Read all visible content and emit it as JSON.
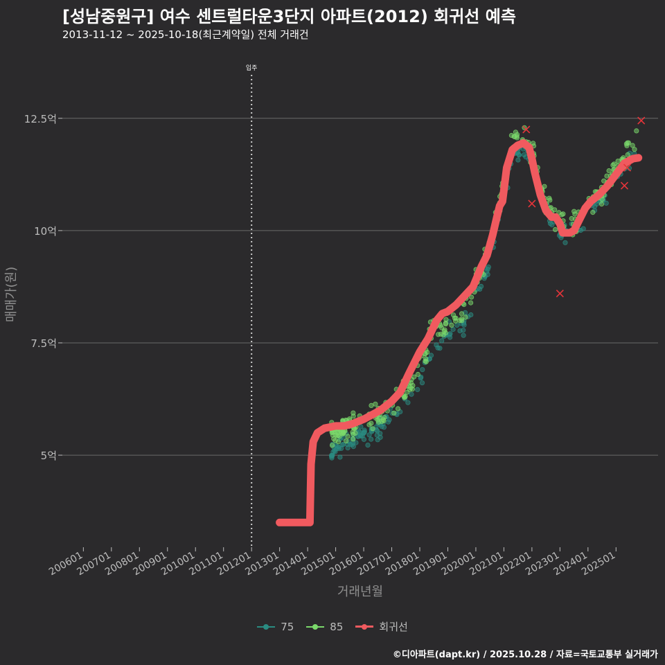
{
  "title": "[성남중원구] 여수 센트럴타운3단지 아파트(2012) 회귀선 예측",
  "subtitle": "2013-11-12 ~ 2025-10-18(최근계약일) 전체 거래건",
  "caption": "©디아파트(dapt.kr) / 2025.10.28 / 자료=국토교통부 실거래가",
  "colors": {
    "background": "#2b2a2c",
    "s75": "#2a8c82",
    "s85": "#7bd96b",
    "regression": "#f05a5f",
    "grid": "#6a6a6a",
    "text": "#ffffff",
    "axis_text": "#bdbdbd"
  },
  "chart_data": {
    "type": "scatter",
    "xlabel": "거래년월",
    "ylabel": "매매가(원)",
    "x_tick_labels": [
      "200601",
      "200701",
      "200801",
      "200901",
      "201001",
      "201101",
      "201201",
      "201301",
      "201401",
      "201501",
      "201601",
      "201701",
      "201801",
      "201901",
      "202001",
      "202101",
      "202201",
      "202301",
      "202401",
      "202501"
    ],
    "x_range": [
      2005.25,
      2026.5
    ],
    "y_tick_labels": [
      "5억",
      "7.5억",
      "10억",
      "12.5억"
    ],
    "y_ticks": [
      5,
      7.5,
      10,
      12.5
    ],
    "y_range": [
      2.95,
      13.9
    ],
    "annotation": {
      "label": "입주",
      "x": 2012.0
    },
    "legend": [
      {
        "name": "75",
        "kind": "points"
      },
      {
        "name": "85",
        "kind": "points"
      },
      {
        "name": "회귀선",
        "kind": "line"
      }
    ],
    "regression_line": {
      "name": "회귀선",
      "x": [
        2013.0,
        2013.5,
        2014.0,
        2014.08,
        2014.12,
        2014.2,
        2014.35,
        2014.6,
        2015.0,
        2015.3,
        2015.6,
        2016.0,
        2016.3,
        2016.6,
        2017.0,
        2017.3,
        2017.6,
        2018.0,
        2018.3,
        2018.6,
        2018.8,
        2019.0,
        2019.3,
        2019.6,
        2019.9,
        2020.2,
        2020.4,
        2020.6,
        2020.75,
        2020.85,
        2020.95,
        2021.1,
        2021.3,
        2021.5,
        2021.7,
        2021.9,
        2022.0,
        2022.1,
        2022.3,
        2022.5,
        2022.7,
        2022.85,
        2023.0,
        2023.1,
        2023.2,
        2023.35,
        2023.5,
        2023.7,
        2023.9,
        2024.1,
        2024.4,
        2024.7,
        2025.0,
        2025.3,
        2025.6,
        2025.8
      ],
      "y": [
        3.5,
        3.5,
        3.5,
        3.5,
        4.8,
        5.3,
        5.5,
        5.6,
        5.65,
        5.65,
        5.7,
        5.8,
        5.9,
        6.0,
        6.2,
        6.4,
        6.8,
        7.3,
        7.6,
        8.0,
        8.15,
        8.2,
        8.35,
        8.55,
        8.75,
        9.2,
        9.45,
        9.9,
        10.3,
        10.55,
        10.65,
        11.4,
        11.8,
        11.9,
        11.95,
        11.85,
        11.6,
        11.3,
        10.8,
        10.45,
        10.3,
        10.3,
        10.15,
        9.95,
        9.95,
        9.95,
        10.0,
        10.25,
        10.5,
        10.65,
        10.8,
        11.0,
        11.25,
        11.5,
        11.6,
        11.62
      ]
    },
    "series": [
      {
        "name": "75",
        "anchors": [
          [
            2014.85,
            5.1
          ],
          [
            2015.5,
            5.3
          ],
          [
            2016.0,
            5.45
          ],
          [
            2016.5,
            5.55
          ],
          [
            2017.0,
            5.9
          ],
          [
            2017.5,
            6.2
          ],
          [
            2018.0,
            6.7
          ],
          [
            2018.5,
            7.35
          ],
          [
            2019.0,
            7.7
          ],
          [
            2019.5,
            7.85
          ],
          [
            2020.0,
            8.55
          ],
          [
            2020.5,
            9.3
          ],
          [
            2021.0,
            10.8
          ],
          [
            2021.3,
            11.6
          ],
          [
            2021.6,
            11.85
          ],
          [
            2022.0,
            11.6
          ],
          [
            2022.3,
            10.9
          ],
          [
            2022.6,
            10.45
          ],
          [
            2023.0,
            9.95
          ],
          [
            2023.5,
            9.95
          ],
          [
            2024.0,
            10.3
          ],
          [
            2024.5,
            10.7
          ],
          [
            2025.0,
            11.2
          ],
          [
            2025.5,
            11.55
          ],
          [
            2025.8,
            11.7
          ]
        ],
        "spread": 0.32,
        "count": 210
      },
      {
        "name": "85",
        "anchors": [
          [
            2014.85,
            5.5
          ],
          [
            2015.5,
            5.65
          ],
          [
            2016.0,
            5.7
          ],
          [
            2016.5,
            5.85
          ],
          [
            2017.0,
            6.1
          ],
          [
            2017.5,
            6.4
          ],
          [
            2018.0,
            6.95
          ],
          [
            2018.5,
            7.9
          ],
          [
            2019.0,
            7.95
          ],
          [
            2019.5,
            8.3
          ],
          [
            2020.0,
            8.8
          ],
          [
            2020.5,
            9.6
          ],
          [
            2021.0,
            11.0
          ],
          [
            2021.3,
            12.1
          ],
          [
            2021.6,
            12.1
          ],
          [
            2022.0,
            11.8
          ],
          [
            2022.3,
            11.0
          ],
          [
            2022.6,
            10.45
          ],
          [
            2023.0,
            10.3
          ],
          [
            2023.5,
            10.1
          ],
          [
            2024.0,
            10.6
          ],
          [
            2024.5,
            10.9
          ],
          [
            2025.0,
            11.4
          ],
          [
            2025.5,
            11.75
          ],
          [
            2025.8,
            12.1
          ]
        ],
        "spread": 0.42,
        "count": 330
      }
    ],
    "outliers": [
      [
        2022.0,
        10.6
      ],
      [
        2023.0,
        8.6
      ],
      [
        2025.9,
        12.45
      ],
      [
        2021.8,
        12.25
      ],
      [
        2025.3,
        11.0
      ],
      [
        2025.4,
        11.4
      ]
    ]
  }
}
